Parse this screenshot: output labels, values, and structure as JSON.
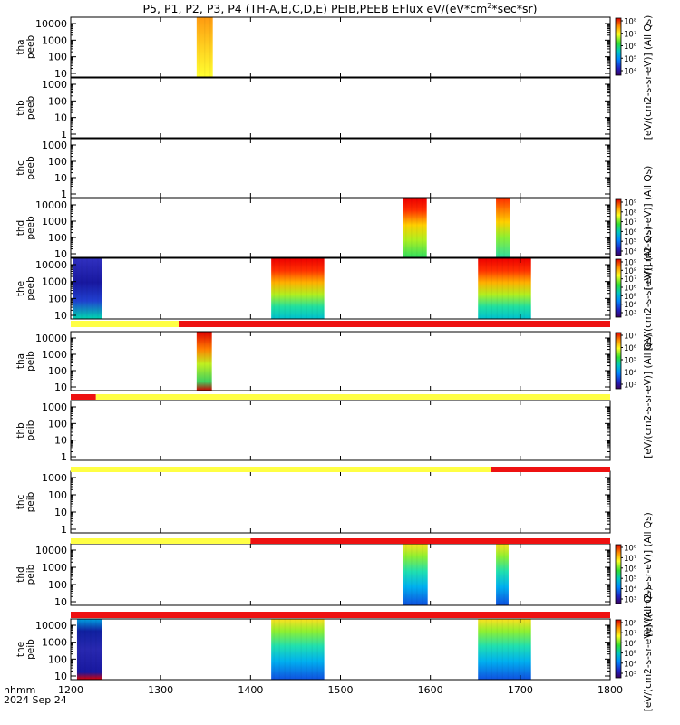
{
  "title": "P5, P1, P2, P3, P4 (TH-A,B,C,D,E) PEIB,PEEB EFlux eV/(eV*cm",
  "title_sup": "2",
  "title_tail": "*sec*sr)",
  "time_axis": {
    "label": "hhmm",
    "date": "2024 Sep 24",
    "ticks": [
      "1200",
      "1300",
      "1400",
      "1500",
      "1600",
      "1700",
      "1800"
    ]
  },
  "colors": {
    "flag_yellow": "#ffff44",
    "flag_red": "#ee1111"
  },
  "chart_data": {
    "type": "heatmap",
    "x_range": [
      "12:00",
      "18:00"
    ],
    "panels": [
      {
        "id": "tha_peeb",
        "label": [
          "tha",
          "peeb"
        ],
        "y_ticks": [
          "10",
          "100",
          "1000",
          "10000"
        ],
        "scale": "log",
        "blocks": [
          {
            "start": "13:40",
            "end": "13:58",
            "style": "tha"
          }
        ],
        "colorbar": {
          "ticks": [
            "10⁸",
            "10⁷",
            "10⁶",
            "10⁵",
            "10⁴"
          ],
          "label": "[eV/(cm2-s-sr-eV)] (All Qs)",
          "span": 2
        }
      },
      {
        "id": "thb_peeb",
        "label": [
          "thb",
          "peeb"
        ],
        "y_ticks": [
          "1",
          "10",
          "100",
          "1000"
        ],
        "scale": "log",
        "blocks": [],
        "colorbar": null
      },
      {
        "id": "thc_peeb",
        "label": [
          "thc",
          "peeb"
        ],
        "y_ticks": [
          "1",
          "10",
          "100",
          "1000"
        ],
        "scale": "log",
        "blocks": [],
        "colorbar": null
      },
      {
        "id": "thd_peeb",
        "label": [
          "thd",
          "peeb"
        ],
        "y_ticks": [
          "10",
          "100",
          "1000",
          "10000"
        ],
        "scale": "log",
        "blocks": [
          {
            "start": "15:70",
            "end": "15:96",
            "style": "hot"
          },
          {
            "start": "16:73",
            "end": "16:89",
            "style": "hotthin"
          }
        ],
        "colorbar": {
          "ticks": [
            "10⁹",
            "10⁸",
            "10⁷",
            "10⁶",
            "10⁵",
            "10⁴"
          ],
          "label": "[eV/(cm2-s-sr-eV)] (All Qs)",
          "span": 1
        }
      },
      {
        "id": "the_peeb",
        "label": [
          "the",
          "peeb"
        ],
        "y_ticks": [
          "10",
          "100",
          "1000",
          "10000"
        ],
        "scale": "log",
        "blocks": [
          {
            "start": "12:03",
            "end": "12:35",
            "style": "cold"
          },
          {
            "start": "14:23",
            "end": "14:82",
            "style": "warm"
          },
          {
            "start": "16:53",
            "end": "17:12",
            "style": "warm"
          }
        ],
        "colorbar": {
          "ticks": [
            "10⁹",
            "10⁸",
            "10⁷",
            "10⁶",
            "10⁵",
            "10⁴",
            "10³"
          ],
          "label": "[eV/(cm2-s-sr-eV)] (All Qs)",
          "span": 1
        }
      },
      {
        "id": "tha_peib",
        "label": [
          "tha",
          "peib"
        ],
        "y_ticks": [
          "10",
          "100",
          "1000",
          "10000"
        ],
        "scale": "log",
        "blocks": [
          {
            "start": "13:40",
            "end": "13:57",
            "style": "hotion"
          }
        ],
        "colorbar": {
          "ticks": [
            "10⁷",
            "10⁶",
            "10⁵",
            "10⁴",
            "10³"
          ],
          "label": "[eV/(cm2-s-sr-eV)] (All Qs)",
          "span": 2
        }
      },
      {
        "id": "thb_peib",
        "label": [
          "thb",
          "peib"
        ],
        "y_ticks": [
          "1",
          "10",
          "100",
          "1000"
        ],
        "scale": "log",
        "blocks": [],
        "colorbar": null
      },
      {
        "id": "thc_peib",
        "label": [
          "thc",
          "peib"
        ],
        "y_ticks": [
          "1",
          "10",
          "100",
          "1000"
        ],
        "scale": "log",
        "blocks": [],
        "colorbar": null
      },
      {
        "id": "thd_peib",
        "label": [
          "thd",
          "peib"
        ],
        "y_ticks": [
          "10",
          "100",
          "1000",
          "10000"
        ],
        "scale": "log",
        "blocks": [
          {
            "start": "15:70",
            "end": "15:97",
            "style": "ion"
          },
          {
            "start": "16:73",
            "end": "16:87",
            "style": "ion"
          }
        ],
        "colorbar": {
          "ticks": [
            "10⁸",
            "10⁷",
            "10⁶",
            "10⁵",
            "10⁴",
            "10³"
          ],
          "label": "[eV/(cm2-s-sr-eV)] (All Qs)",
          "span": 1
        }
      },
      {
        "id": "the_peib",
        "label": [
          "the",
          "peib"
        ],
        "y_ticks": [
          "10",
          "100",
          "1000",
          "10000"
        ],
        "scale": "log",
        "blocks": [
          {
            "start": "12:07",
            "end": "12:35",
            "style": "coldion"
          },
          {
            "start": "14:23",
            "end": "14:82",
            "style": "ion"
          },
          {
            "start": "16:53",
            "end": "17:12",
            "style": "ion"
          }
        ],
        "colorbar": {
          "ticks": [
            "10⁸",
            "10⁷",
            "10⁶",
            "10⁵",
            "10⁴",
            "10³"
          ],
          "label": "[eV/(cm2-s-sr-eV)] (All Qs)",
          "span": 1
        }
      }
    ],
    "flag_bars": [
      {
        "after_panel": 4,
        "segments": [
          {
            "start": "12:00",
            "end": "13:20",
            "color": "yellow"
          },
          {
            "start": "13:20",
            "end": "18:00",
            "color": "red"
          }
        ]
      },
      {
        "after_panel": 5,
        "segments": [
          {
            "start": "12:00",
            "end": "12:28",
            "color": "red"
          },
          {
            "start": "12:28",
            "end": "18:00",
            "color": "yellow"
          }
        ]
      },
      {
        "after_panel": 6,
        "segments": [
          {
            "start": "12:00",
            "end": "16:67",
            "color": "yellow"
          },
          {
            "start": "16:67",
            "end": "18:00",
            "color": "red"
          }
        ]
      },
      {
        "after_panel": 8,
        "segments": [
          {
            "start": "12:00",
            "end": "14:00",
            "color": "yellow"
          },
          {
            "start": "14:00",
            "end": "18:00",
            "color": "red"
          }
        ]
      },
      {
        "after_panel": 9,
        "segments": [
          {
            "start": "12:00",
            "end": "18:00",
            "color": "red"
          }
        ]
      }
    ]
  }
}
